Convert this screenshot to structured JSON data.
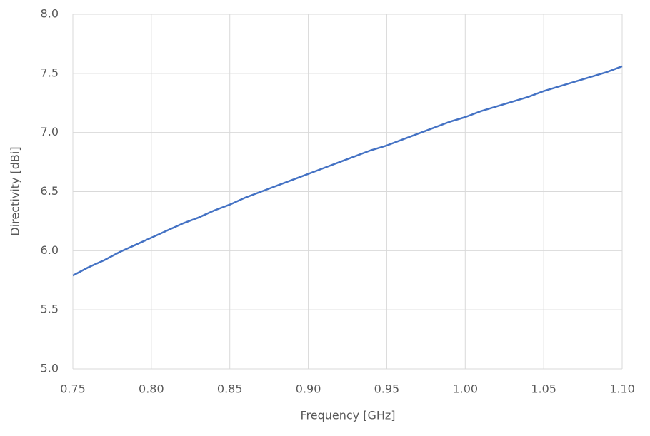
{
  "chart_data": {
    "type": "line",
    "x_label": "Frequency [GHz]",
    "y_label": "Directivity [dBi]",
    "x": [
      0.75,
      0.76,
      0.77,
      0.78,
      0.79,
      0.8,
      0.81,
      0.82,
      0.83,
      0.84,
      0.85,
      0.86,
      0.87,
      0.88,
      0.89,
      0.9,
      0.91,
      0.92,
      0.93,
      0.94,
      0.95,
      0.96,
      0.97,
      0.98,
      0.99,
      1.0,
      1.01,
      1.02,
      1.03,
      1.04,
      1.05,
      1.06,
      1.07,
      1.08,
      1.09,
      1.1
    ],
    "series": [
      {
        "color": "#4472c4",
        "values": [
          5.79,
          5.86,
          5.92,
          5.99,
          6.05,
          6.11,
          6.17,
          6.23,
          6.28,
          6.34,
          6.39,
          6.45,
          6.5,
          6.55,
          6.6,
          6.65,
          6.7,
          6.75,
          6.8,
          6.85,
          6.89,
          6.94,
          6.99,
          7.04,
          7.09,
          7.13,
          7.18,
          7.22,
          7.26,
          7.3,
          7.35,
          7.39,
          7.43,
          7.47,
          7.51,
          7.56
        ]
      }
    ],
    "xlim": [
      0.75,
      1.1
    ],
    "xticks": [
      0.75,
      {
        "value": 0.8,
        "label": "0.80"
      },
      0.85,
      {
        "value": 0.9,
        "label": "0.90"
      },
      0.95,
      {
        "value": 1.0,
        "label": "1.00"
      },
      1.05,
      {
        "value": 1.1,
        "label": "1.10"
      }
    ],
    "ylim": [
      5.0,
      8.0
    ],
    "yticks": [
      {
        "value": 5.0,
        "label": "5.0"
      },
      5.5,
      {
        "value": 6.0,
        "label": "6.0"
      },
      6.5,
      {
        "value": 7.0,
        "label": "7.0"
      },
      7.5,
      {
        "value": 8.0,
        "label": "8.0"
      }
    ],
    "grid": true
  }
}
